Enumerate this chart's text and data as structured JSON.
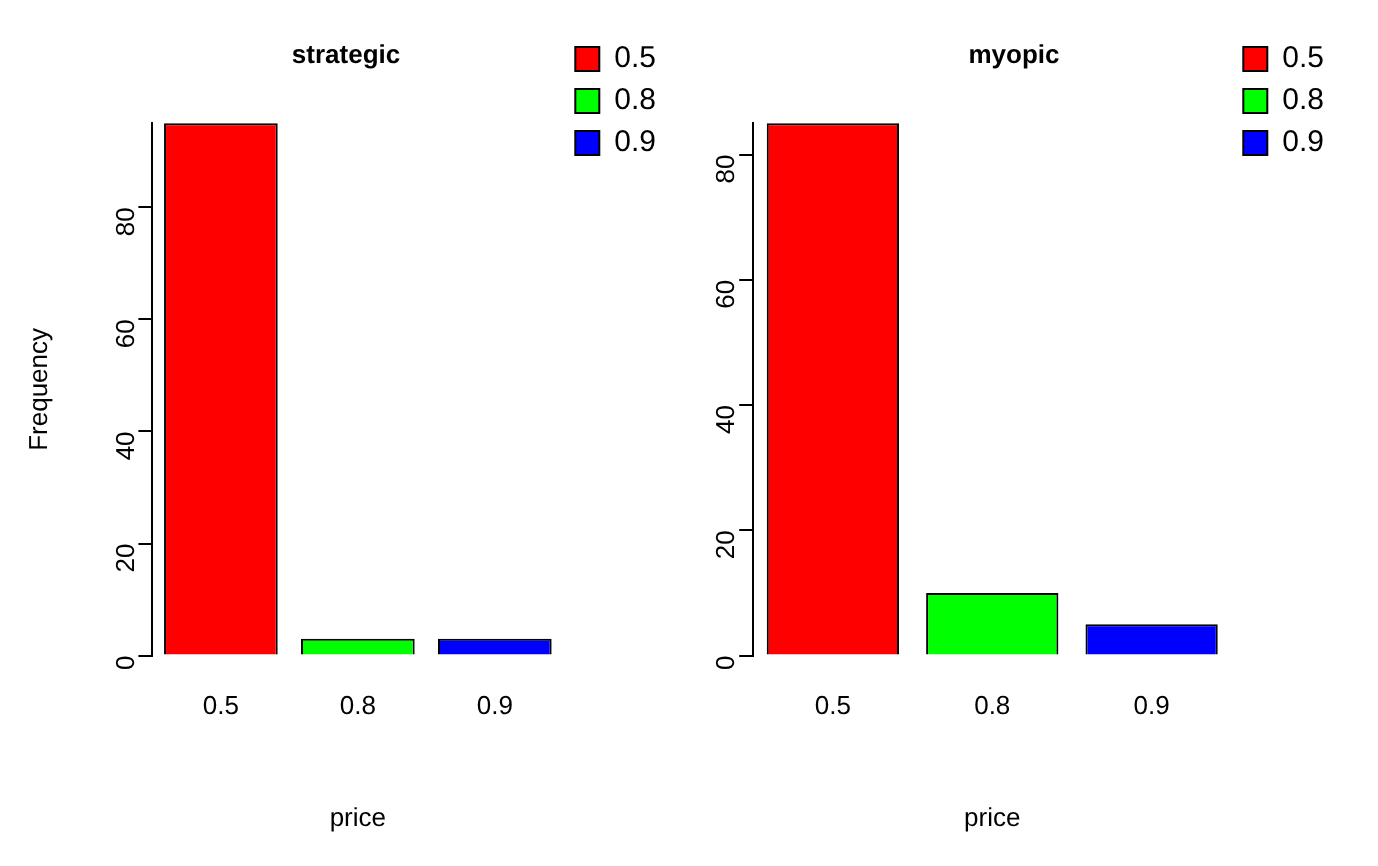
{
  "chart_data": [
    {
      "type": "bar",
      "title": "strategic",
      "xlabel": "price",
      "ylabel": "Frequency",
      "categories": [
        "0.5",
        "0.8",
        "0.9"
      ],
      "series": [
        {
          "name": "0.5",
          "color": "#ff0000",
          "values": [
            95,
            null,
            null
          ]
        },
        {
          "name": "0.8",
          "color": "#00ff00",
          "values": [
            null,
            3,
            null
          ]
        },
        {
          "name": "0.9",
          "color": "#0000ff",
          "values": [
            null,
            null,
            3
          ]
        }
      ],
      "ylim": [
        0,
        95
      ],
      "yticks": [
        0,
        20,
        40,
        60,
        80
      ],
      "grid": false,
      "legend": "top right"
    },
    {
      "type": "bar",
      "title": "myopic",
      "xlabel": "price",
      "categories": [
        "0.5",
        "0.8",
        "0.9"
      ],
      "series": [
        {
          "name": "0.5",
          "color": "#ff0000",
          "values": [
            85,
            null,
            null
          ]
        },
        {
          "name": "0.8",
          "color": "#00ff00",
          "values": [
            null,
            10,
            null
          ]
        },
        {
          "name": "0.9",
          "color": "#0000ff",
          "values": [
            null,
            null,
            5
          ]
        }
      ],
      "ylim": [
        0,
        85
      ],
      "yticks": [
        0,
        20,
        40,
        60,
        80
      ],
      "grid": false,
      "legend": "top right"
    }
  ]
}
